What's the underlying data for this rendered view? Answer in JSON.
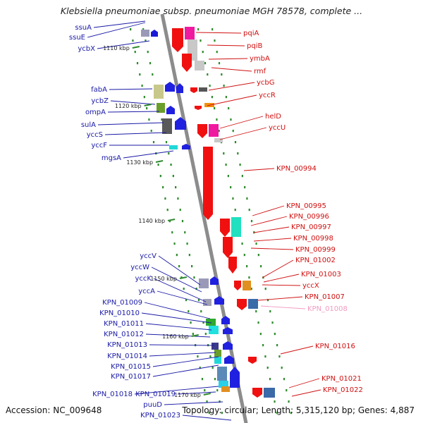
{
  "title": "Klebsiella pneumoniae subsp. pneumoniae MGH 78578, complete ...",
  "footer": {
    "accession": "Accession: NC_009648",
    "meta": "Topology: circular; Length: 5,315,120 bp; Genes: 4,887"
  },
  "colors": {
    "left_labels": "#1a1aa6",
    "right_labels": "#d01010",
    "faded_label": "#f29ac0",
    "backbone": "#8c8c8c",
    "tick_dots": "#2e8b2e"
  },
  "scale_ticks": [
    "1110 kbp",
    "1120 kbp",
    "1130 kbp",
    "1140 kbp",
    "1150 kbp",
    "1160 kbp",
    "1170 kbp"
  ],
  "left_genes": [
    "ssuA",
    "ssuE",
    "ycbX",
    "fabA",
    "ycbZ",
    "ompA",
    "sulA",
    "yccS",
    "yccF",
    "mgsA",
    "yccV",
    "yccW",
    "yccK",
    "yccA",
    "KPN_01009",
    "KPN_01010",
    "KPN_01011",
    "KPN_01012",
    "KPN_01013",
    "KPN_01014",
    "KPN_01015",
    "KPN_01017",
    "KPN_01018",
    "KPN_01019",
    "puuD",
    "KPN_01023"
  ],
  "right_genes": [
    "pqiA",
    "pqiB",
    "ymbA",
    "rmf",
    "ycbG",
    "yccR",
    "helD",
    "yccU",
    "KPN_00994",
    "KPN_00995",
    "KPN_00996",
    "KPN_00997",
    "KPN_00998",
    "KPN_00999",
    "KPN_01002",
    "KPN_01003",
    "yccX",
    "KPN_01007",
    "KPN_01008",
    "KPN_01016",
    "KPN_01021",
    "KPN_01022"
  ]
}
